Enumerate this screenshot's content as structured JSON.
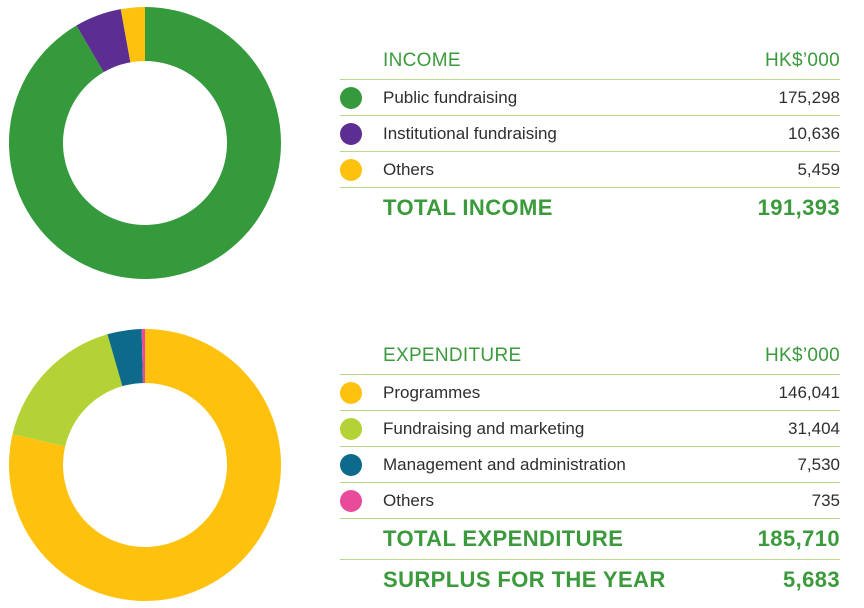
{
  "chart_data": [
    {
      "type": "pie",
      "variant": "donut",
      "header_label": "INCOME",
      "unit_label": "HK$’000",
      "categories": [
        "Public fundraising",
        "Institutional fundraising",
        "Others"
      ],
      "values": [
        175298,
        10636,
        5459
      ],
      "display_values": [
        "175,298",
        "10,636",
        "5,459"
      ],
      "colors": [
        "#349a3c",
        "#5c2e91",
        "#fec20e"
      ],
      "totals": [
        {
          "label": "TOTAL INCOME",
          "value": "191,393"
        }
      ]
    },
    {
      "type": "pie",
      "variant": "donut",
      "header_label": "EXPENDITURE",
      "unit_label": "HK$’000",
      "categories": [
        "Programmes",
        "Fundraising and marketing",
        "Management and administration",
        "Others"
      ],
      "values": [
        146041,
        31404,
        7530,
        735
      ],
      "display_values": [
        "146,041",
        "31,404",
        "7,530",
        "735"
      ],
      "colors": [
        "#fec20e",
        "#b2d235",
        "#0e6a8a",
        "#e94b9b"
      ],
      "totals": [
        {
          "label": "TOTAL EXPENDITURE",
          "value": "185,710"
        },
        {
          "label": "SURPLUS FOR THE YEAR",
          "value": "5,683"
        }
      ]
    }
  ]
}
